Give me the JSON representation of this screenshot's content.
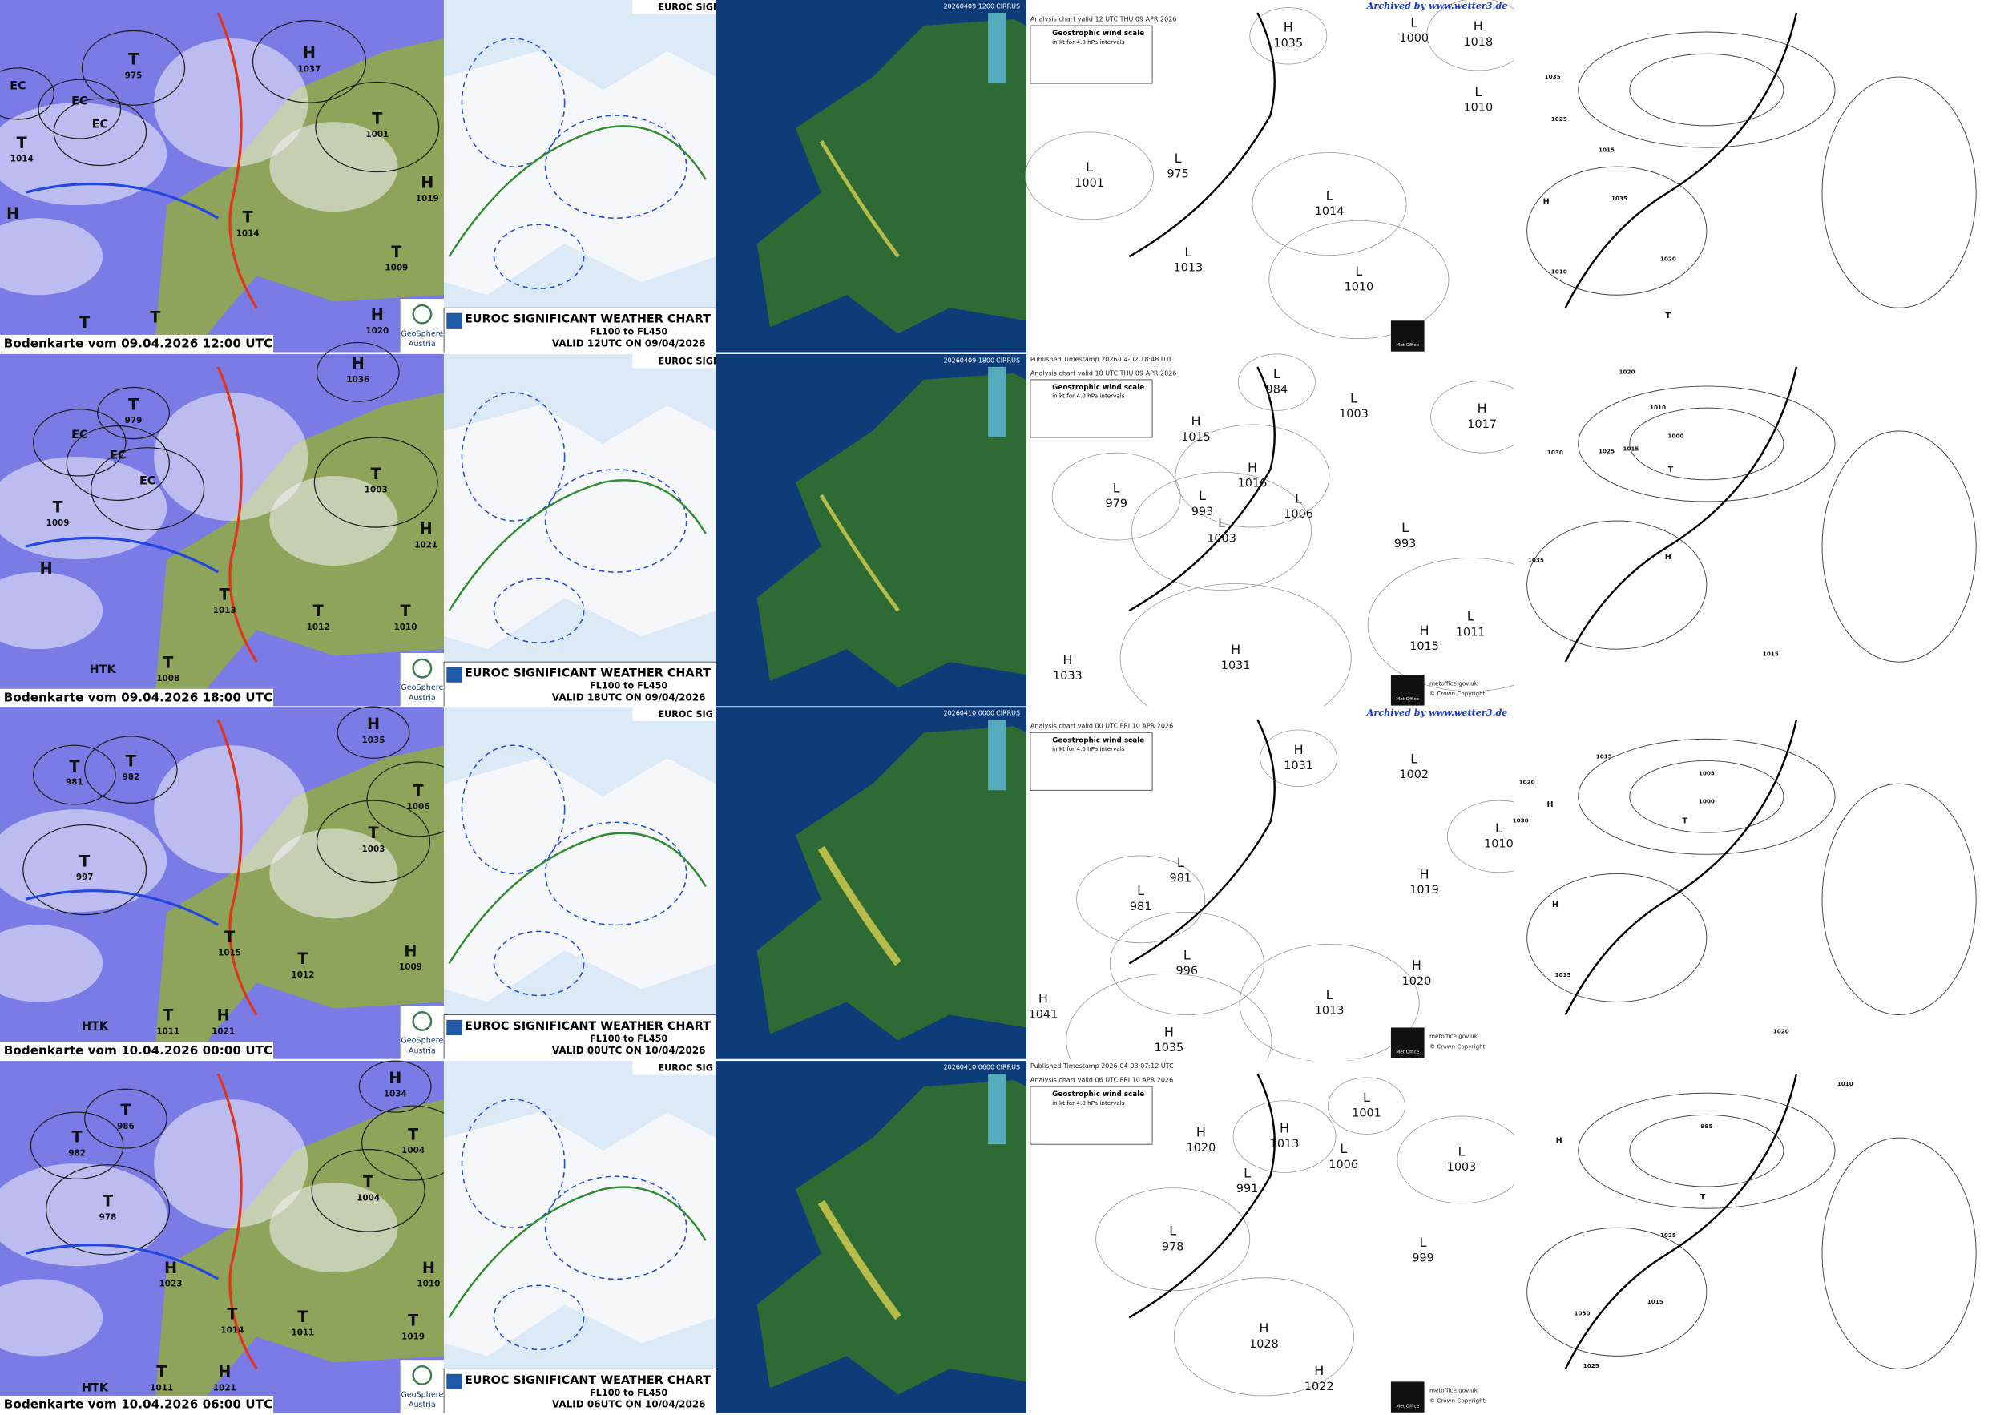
{
  "rows": [
    {
      "geosphere": {
        "caption": "Bodenkarte vom 09.04.2026 12:00 UTC",
        "logo": "GeoSphere",
        "logo_sub": "Austria",
        "centers": [
          {
            "kind": "EC"
          },
          {
            "kind": "EC"
          },
          {
            "kind": "EC"
          },
          {
            "kind": "T",
            "value": 975
          },
          {
            "kind": "H",
            "value": 1037
          },
          {
            "kind": "T",
            "value": 1001
          },
          {
            "kind": "T",
            "value": 1014
          },
          {
            "kind": "H",
            "value": 1019
          },
          {
            "kind": "H"
          },
          {
            "kind": "T",
            "value": 1014
          },
          {
            "kind": "T",
            "value": 1009
          },
          {
            "kind": "T"
          },
          {
            "kind": "T"
          },
          {
            "kind": "H",
            "value": 1020
          }
        ]
      },
      "euroc": {
        "header": "EUROC SIGN",
        "title": "EUROC SIGNIFICANT WEATHER CHART",
        "levels": "FL100 to FL450",
        "valid": "VALID 12UTC ON 09/04/2026"
      },
      "radar": {
        "stamp": "20260409 1200",
        "product": "CIRRUS"
      },
      "metoffice": {
        "archived": "Archived by www.wetter3.de",
        "header": "Analysis chart  valid 12 UTC THU 09  APR 2026",
        "scale_title": "Geostrophic wind scale",
        "scale_sub": "in kt for 4.0 hPa intervals",
        "logo": "Met Office",
        "centers": [
          {
            "kind": "H",
            "value": 1035
          },
          {
            "kind": "L",
            "value": 1000
          },
          {
            "kind": "H",
            "value": 1018
          },
          {
            "kind": "L",
            "value": 1010
          },
          {
            "kind": "L",
            "value": 1001
          },
          {
            "kind": "L",
            "value": 975
          },
          {
            "kind": "L",
            "value": 1014
          },
          {
            "kind": "L",
            "value": 1013
          },
          {
            "kind": "L",
            "value": 1010
          }
        ]
      },
      "dwd": {
        "isobars": [
          1035,
          1025,
          1015,
          1035,
          1020,
          1010
        ],
        "centers": [
          {
            "kind": "H"
          },
          {
            "kind": "T"
          }
        ]
      }
    },
    {
      "geosphere": {
        "caption": "Bodenkarte vom 09.04.2026 18:00 UTC",
        "logo": "GeoSphere",
        "logo_sub": "Austria",
        "centers": [
          {
            "kind": "T",
            "value": 979
          },
          {
            "kind": "H",
            "value": 1036
          },
          {
            "kind": "EC"
          },
          {
            "kind": "EC"
          },
          {
            "kind": "EC"
          },
          {
            "kind": "T",
            "value": 1003
          },
          {
            "kind": "T",
            "value": 1009
          },
          {
            "kind": "H"
          },
          {
            "kind": "H",
            "value": 1021
          },
          {
            "kind": "T",
            "value": 1013
          },
          {
            "kind": "T",
            "value": 1012
          },
          {
            "kind": "T",
            "value": 1010
          },
          {
            "kind": "HTK"
          },
          {
            "kind": "T",
            "value": 1008
          }
        ]
      },
      "euroc": {
        "header": "EUROC SIGNI",
        "title": "EUROC SIGNIFICANT WEATHER CHART",
        "levels": "FL100 to FL450",
        "valid": "VALID 18UTC ON 09/04/2026"
      },
      "radar": {
        "stamp": "20260409 1800",
        "product": "CIRRUS"
      },
      "metoffice": {
        "timestamp": "Published Timestamp    2026-04-02    18:48  UTC",
        "header": "Analysis chart  valid 18 UTC THU 09  APR 2026",
        "scale_title": "Geostrophic wind scale",
        "scale_sub": "in kt for 4.0 hPa intervals",
        "logo": "Met Office",
        "site": "metoffice.gov.uk",
        "copyright": "© Crown Copyright",
        "centers": [
          {
            "kind": "L",
            "value": 984
          },
          {
            "kind": "L",
            "value": 1003
          },
          {
            "kind": "H",
            "value": 1017
          },
          {
            "kind": "H",
            "value": 1015
          },
          {
            "kind": "L",
            "value": 979
          },
          {
            "kind": "L",
            "value": 993
          },
          {
            "kind": "H",
            "value": 1016
          },
          {
            "kind": "L",
            "value": 1006
          },
          {
            "kind": "L",
            "value": 1003
          },
          {
            "kind": "L",
            "value": 993
          },
          {
            "kind": "L",
            "value": 1011
          },
          {
            "kind": "H",
            "value": 1015
          },
          {
            "kind": "H",
            "value": 1031
          },
          {
            "kind": "H",
            "value": 1033
          }
        ]
      },
      "dwd": {
        "isobars": [
          1020,
          1010,
          1000,
          1030,
          1025,
          1015,
          1035,
          1015
        ],
        "centers": [
          {
            "kind": "H"
          },
          {
            "kind": "T"
          }
        ]
      }
    },
    {
      "geosphere": {
        "caption": "Bodenkarte vom 10.04.2026 00:00 UTC",
        "logo": "GeoSphere",
        "logo_sub": "Austria",
        "centers": [
          {
            "kind": "H",
            "value": 1035
          },
          {
            "kind": "T",
            "value": 981
          },
          {
            "kind": "T",
            "value": 982
          },
          {
            "kind": "T",
            "value": 1006
          },
          {
            "kind": "T",
            "value": 1003
          },
          {
            "kind": "T",
            "value": 997
          },
          {
            "kind": "T",
            "value": 1015
          },
          {
            "kind": "T",
            "value": 1012
          },
          {
            "kind": "H",
            "value": 1009
          },
          {
            "kind": "HTK"
          },
          {
            "kind": "T",
            "value": 1011
          },
          {
            "kind": "H",
            "value": 1021
          }
        ]
      },
      "euroc": {
        "header": "EUROC SIG",
        "title": "EUROC SIGNIFICANT WEATHER CHART",
        "levels": "FL100 to FL450",
        "valid": "VALID 00UTC ON 10/04/2026"
      },
      "radar": {
        "stamp": "20260410 0000",
        "product": "CIRRUS"
      },
      "metoffice": {
        "archived": "Archived by www.wetter3.de",
        "header": "Analysis chart  valid 00 UTC FRI 10  APR 2026",
        "scale_title": "Geostrophic wind scale",
        "scale_sub": "in kt for 4.0 hPa intervals",
        "logo": "Met Office",
        "site": "metoffice.gov.uk",
        "copyright": "© Crown Copyright",
        "centers": [
          {
            "kind": "H",
            "value": 1031
          },
          {
            "kind": "L",
            "value": 1002
          },
          {
            "kind": "L",
            "value": 1010
          },
          {
            "kind": "L",
            "value": 981
          },
          {
            "kind": "L",
            "value": 981
          },
          {
            "kind": "H",
            "value": 1019
          },
          {
            "kind": "L",
            "value": 996
          },
          {
            "kind": "H",
            "value": 1020
          },
          {
            "kind": "L",
            "value": 1013
          },
          {
            "kind": "H",
            "value": 1041
          },
          {
            "kind": "H",
            "value": 1035
          }
        ]
      },
      "dwd": {
        "isobars": [
          1020,
          1015,
          1005,
          1000,
          1030,
          1015,
          1020
        ],
        "centers": [
          {
            "kind": "H"
          },
          {
            "kind": "H"
          },
          {
            "kind": "T"
          }
        ]
      }
    },
    {
      "geosphere": {
        "caption": "Bodenkarte vom 10.04.2026 06:00 UTC",
        "logo": "GeoSphere",
        "logo_sub": "Austria",
        "centers": [
          {
            "kind": "H",
            "value": 1034
          },
          {
            "kind": "T",
            "value": 986
          },
          {
            "kind": "T",
            "value": 982
          },
          {
            "kind": "T",
            "value": 1004
          },
          {
            "kind": "T",
            "value": 1004
          },
          {
            "kind": "T",
            "value": 978
          },
          {
            "kind": "H",
            "value": 1023
          },
          {
            "kind": "H",
            "value": 1010
          },
          {
            "kind": "T",
            "value": 1014
          },
          {
            "kind": "T",
            "value": 1011
          },
          {
            "kind": "T",
            "value": 1019
          },
          {
            "kind": "HTK"
          },
          {
            "kind": "T",
            "value": 1011
          },
          {
            "kind": "H",
            "value": 1021
          }
        ]
      },
      "euroc": {
        "header": "EUROC SIG",
        "title": "EUROC SIGNIFICANT WEATHER CHART",
        "levels": "FL100 to FL450",
        "valid": "VALID 06UTC ON 10/04/2026"
      },
      "radar": {
        "stamp": "20260410 0600",
        "product": "CIRRUS"
      },
      "metoffice": {
        "timestamp": "Published Timestamp    2026-04-03    07:12  UTC",
        "header": "Analysis chart  valid 06 UTC FRI 10  APR 2026",
        "scale_title": "Geostrophic wind scale",
        "scale_sub": "in kt for 4.0 hPa intervals",
        "logo": "Met Office",
        "site": "metoffice.gov.uk",
        "copyright": "© Crown Copyright",
        "centers": [
          {
            "kind": "L",
            "value": 1001
          },
          {
            "kind": "H",
            "value": 1020
          },
          {
            "kind": "H",
            "value": 1013
          },
          {
            "kind": "L",
            "value": 1006
          },
          {
            "kind": "L",
            "value": 1003
          },
          {
            "kind": "L",
            "value": 991
          },
          {
            "kind": "L",
            "value": 978
          },
          {
            "kind": "L",
            "value": 999
          },
          {
            "kind": "H",
            "value": 1028
          },
          {
            "kind": "H",
            "value": 1022
          }
        ]
      },
      "dwd": {
        "isobars": [
          1010,
          995,
          1025,
          1030,
          1025,
          1015
        ],
        "centers": [
          {
            "kind": "H"
          },
          {
            "kind": "T"
          }
        ]
      }
    }
  ]
}
